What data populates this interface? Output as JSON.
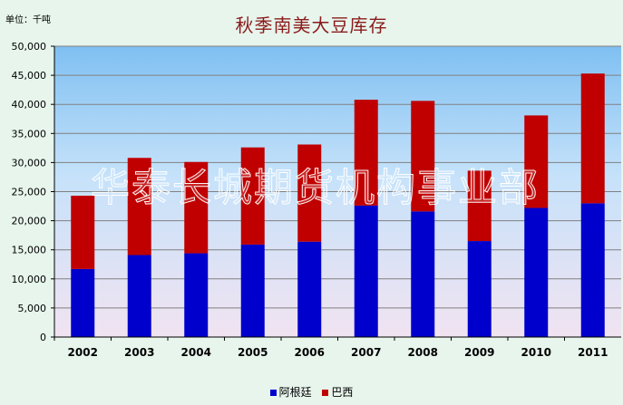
{
  "unit_label": "单位：千吨",
  "watermark": "华泰长城期货机构事业部",
  "colors": {
    "argentina": "#0000CC",
    "brazil": "#C00000",
    "plot_top": "#7FC0F2",
    "plot_mid": "#C6E2FA",
    "plot_bottom": "#F1E3F1"
  },
  "chart_data": {
    "type": "bar",
    "stacked": true,
    "title": "秋季南美大豆库存",
    "categories": [
      "2002",
      "2003",
      "2004",
      "2005",
      "2006",
      "2007",
      "2008",
      "2009",
      "2010",
      "2011"
    ],
    "series": [
      {
        "name": "阿根廷",
        "values": [
          11700,
          14100,
          14400,
          15900,
          16400,
          22600,
          21600,
          16500,
          22200,
          23000
        ]
      },
      {
        "name": "巴西",
        "values": [
          12600,
          16700,
          15700,
          16700,
          16700,
          18200,
          19000,
          12100,
          15900,
          22300
        ]
      }
    ],
    "ylim": [
      0,
      50000
    ],
    "yticks": [
      "0",
      "5,000",
      "10,000",
      "15,000",
      "20,000",
      "25,000",
      "30,000",
      "35,000",
      "40,000",
      "45,000",
      "50,000"
    ],
    "grid": true,
    "legend_position": "bottom"
  }
}
